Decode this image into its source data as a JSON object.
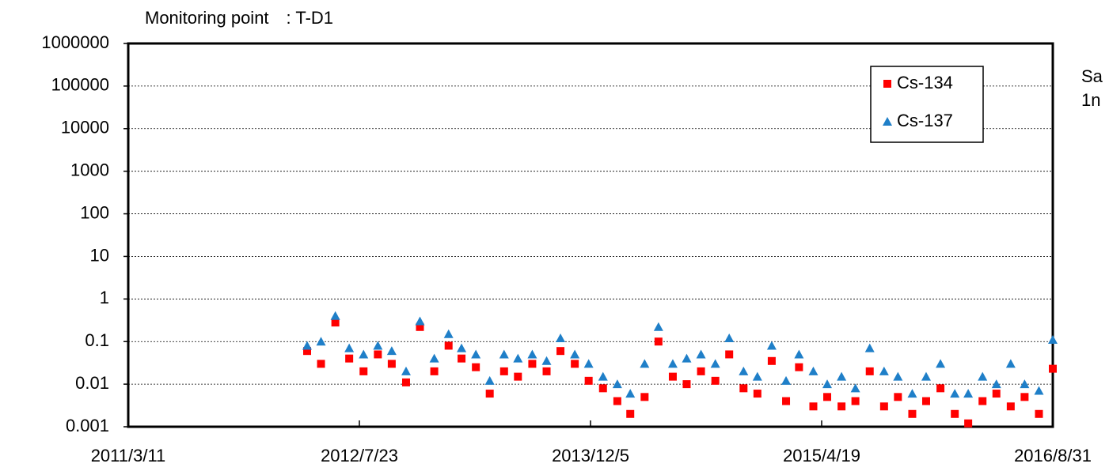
{
  "chart_data": {
    "type": "scatter",
    "title": "Monitoring point　: T-D1",
    "annotations": [
      "Sa",
      "1n"
    ],
    "log_y": true,
    "grid": true,
    "legend": "upper right",
    "xlim": [
      "2011/3/11",
      "2016/8/31"
    ],
    "xticks": [
      "2011/3/11",
      "2012/7/23",
      "2013/12/5",
      "2015/4/19",
      "2016/8/31"
    ],
    "ylim": [
      0.001,
      1000000
    ],
    "yticks": [
      0.001,
      0.01,
      0.1,
      1,
      10,
      100,
      1000,
      10000,
      100000,
      1000000
    ],
    "x": [
      "2012/4/1",
      "2012/5/1",
      "2012/6/1",
      "2012/7/1",
      "2012/8/1",
      "2012/9/1",
      "2012/10/1",
      "2012/11/1",
      "2012/12/1",
      "2013/1/1",
      "2013/2/1",
      "2013/3/1",
      "2013/4/1",
      "2013/5/1",
      "2013/6/1",
      "2013/7/1",
      "2013/8/1",
      "2013/9/1",
      "2013/10/1",
      "2013/11/1",
      "2013/12/1",
      "2014/1/1",
      "2014/2/1",
      "2014/3/1",
      "2014/4/1",
      "2014/5/1",
      "2014/6/1",
      "2014/7/1",
      "2014/8/1",
      "2014/9/1",
      "2014/10/1",
      "2014/11/1",
      "2014/12/1",
      "2015/1/1",
      "2015/2/1",
      "2015/3/1",
      "2015/4/1",
      "2015/5/1",
      "2015/6/1",
      "2015/7/1",
      "2015/8/1",
      "2015/9/1",
      "2015/10/1",
      "2015/11/1",
      "2015/12/1",
      "2016/1/1",
      "2016/2/1",
      "2016/3/1",
      "2016/4/1",
      "2016/5/1",
      "2016/6/1",
      "2016/7/1",
      "2016/8/1",
      "2016/8/31"
    ],
    "series": [
      {
        "name": "Cs-134",
        "color": "#ff0000",
        "marker": "square",
        "values": [
          0.06,
          0.03,
          0.28,
          0.04,
          0.02,
          0.05,
          0.03,
          0.011,
          0.22,
          0.02,
          0.08,
          0.04,
          0.025,
          0.006,
          0.02,
          0.015,
          0.03,
          0.02,
          0.06,
          0.03,
          0.012,
          0.008,
          0.004,
          0.002,
          0.005,
          0.1,
          0.015,
          0.01,
          0.02,
          0.012,
          0.05,
          0.008,
          0.006,
          0.035,
          0.004,
          0.025,
          0.003,
          0.005,
          0.003,
          0.004,
          0.02,
          0.003,
          0.005,
          0.002,
          0.004,
          0.008,
          0.002,
          0.0012,
          0.004,
          0.006,
          0.003,
          0.005,
          0.002,
          0.023
        ]
      },
      {
        "name": "Cs-137",
        "color": "#1f7fc8",
        "marker": "triangle",
        "values": [
          0.08,
          0.1,
          0.4,
          0.07,
          0.05,
          0.08,
          0.06,
          0.02,
          0.3,
          0.04,
          0.15,
          0.07,
          0.05,
          0.012,
          0.05,
          0.04,
          0.05,
          0.035,
          0.12,
          0.05,
          0.03,
          0.015,
          0.01,
          0.006,
          0.03,
          0.22,
          0.03,
          0.04,
          0.05,
          0.03,
          0.12,
          0.02,
          0.015,
          0.08,
          0.012,
          0.05,
          0.02,
          0.01,
          0.015,
          0.008,
          0.07,
          0.02,
          0.015,
          0.006,
          0.015,
          0.03,
          0.006,
          0.006,
          0.015,
          0.01,
          0.03,
          0.01,
          0.007,
          0.11
        ]
      }
    ]
  }
}
